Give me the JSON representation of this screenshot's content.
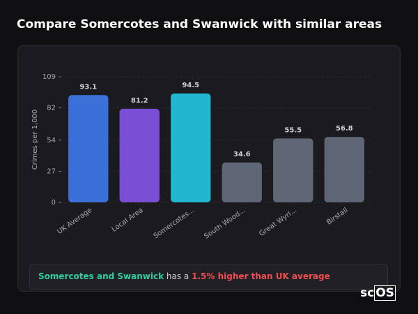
{
  "chart_data": {
    "type": "bar",
    "title": "Compare Somercotes and Swanwick with similar areas",
    "y_label": "Crimes per 1,000",
    "categories": [
      "UK Average",
      "Local Area",
      "Somercotes...",
      "South Wood...",
      "Great Wyrl...",
      "Birstall"
    ],
    "values": [
      93.1,
      81.2,
      94.5,
      34.6,
      55.5,
      56.8
    ],
    "colors": [
      "#3b70d9",
      "#7a4fd5",
      "#21b7cf",
      "#5f6777",
      "#5f6777",
      "#5f6777"
    ],
    "ylim": [
      0,
      109
    ],
    "yticks": [
      0,
      27,
      54,
      82,
      109
    ],
    "grid": true
  },
  "summary": {
    "area": "Somercotes and Swanwick",
    "text": "has a",
    "highlight": "1.5% higher than UK average"
  },
  "logo": {
    "prefix": "sc",
    "boxed": "OS"
  }
}
